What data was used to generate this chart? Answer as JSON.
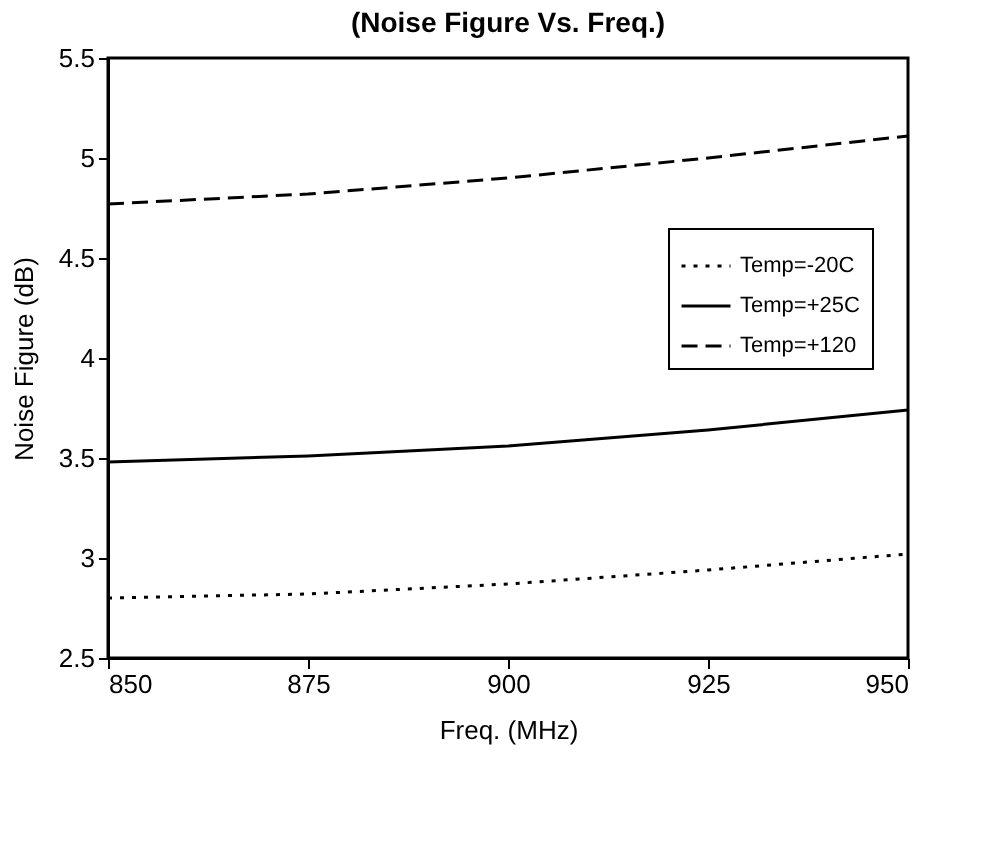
{
  "chart_data": {
    "type": "line",
    "title": "(Noise Figure Vs. Freq.)",
    "xlabel": "Freq. (MHz)",
    "ylabel": "Noise Figure (dB)",
    "x": [
      850,
      875,
      900,
      925,
      950
    ],
    "series": [
      {
        "name": "Temp=-20C",
        "color": "#000000",
        "line_style": "dotted",
        "values": [
          2.8,
          2.82,
          2.87,
          2.94,
          3.02
        ]
      },
      {
        "name": "Temp=+25C",
        "color": "#000000",
        "line_style": "solid",
        "values": [
          3.48,
          3.51,
          3.56,
          3.64,
          3.74
        ]
      },
      {
        "name": "Temp=+120",
        "color": "#000000",
        "line_style": "dashed",
        "values": [
          4.77,
          4.82,
          4.9,
          5.0,
          5.11
        ]
      }
    ],
    "xlim": [
      850,
      950
    ],
    "xticks": [
      850,
      875,
      900,
      925,
      950
    ],
    "ylim": [
      2.5,
      5.5
    ],
    "yticks": [
      2.5,
      3,
      3.5,
      4,
      4.5,
      5,
      5.5
    ],
    "grid": false,
    "legend": "right",
    "marker": "none"
  }
}
